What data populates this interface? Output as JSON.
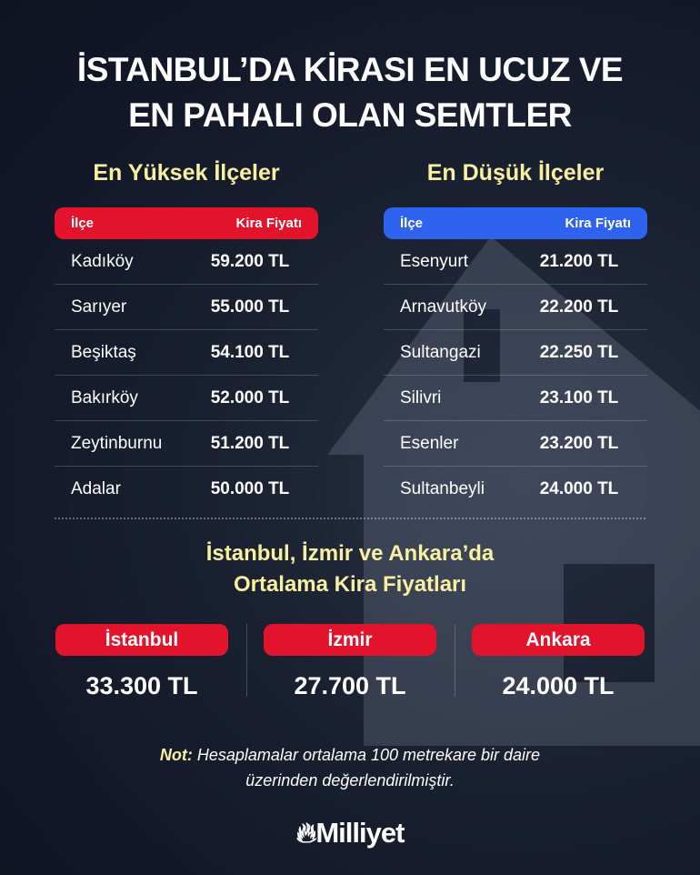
{
  "title": {
    "line1": "İSTANBUL’DA KİRASI EN UCUZ VE",
    "line2": "EN PAHALI OLAN SEMTLER"
  },
  "highest": {
    "heading": "En Yüksek İlçeler",
    "col_district": "İlçe",
    "col_price": "Kira Fiyatı",
    "color": "#e3132b",
    "rows": [
      {
        "district": "Kadıköy",
        "price": "59.200 TL"
      },
      {
        "district": "Sarıyer",
        "price": "55.000 TL"
      },
      {
        "district": "Beşiktaş",
        "price": "54.100 TL"
      },
      {
        "district": "Bakırköy",
        "price": "52.000 TL"
      },
      {
        "district": "Zeytinburnu",
        "price": "51.200 TL"
      },
      {
        "district": "Adalar",
        "price": "50.000 TL"
      }
    ]
  },
  "lowest": {
    "heading": "En Düşük İlçeler",
    "col_district": "İlçe",
    "col_price": "Kira Fiyatı",
    "color": "#2d63ee",
    "rows": [
      {
        "district": "Esenyurt",
        "price": "21.200 TL"
      },
      {
        "district": "Arnavutköy",
        "price": "22.200 TL"
      },
      {
        "district": "Sultangazi",
        "price": "22.250 TL"
      },
      {
        "district": "Silivri",
        "price": "23.100 TL"
      },
      {
        "district": "Esenler",
        "price": "23.200 TL"
      },
      {
        "district": "Sultanbeyli",
        "price": "24.000 TL"
      }
    ]
  },
  "averages": {
    "heading1": "İstanbul, İzmir ve Ankara’da",
    "heading2": "Ortalama Kira Fiyatları",
    "cities": [
      {
        "name": "İstanbul",
        "price": "33.300 TL"
      },
      {
        "name": "İzmir",
        "price": "27.700 TL"
      },
      {
        "name": "Ankara",
        "price": "24.000 TL"
      }
    ]
  },
  "note": {
    "label": "Not:",
    "text1": " Hesaplamalar ortalama 100 metrekare bir daire",
    "text2": "üzerinden değerlendirilmiştir."
  },
  "brand": {
    "name": "Milliyet",
    "icon": "flame-icon"
  }
}
